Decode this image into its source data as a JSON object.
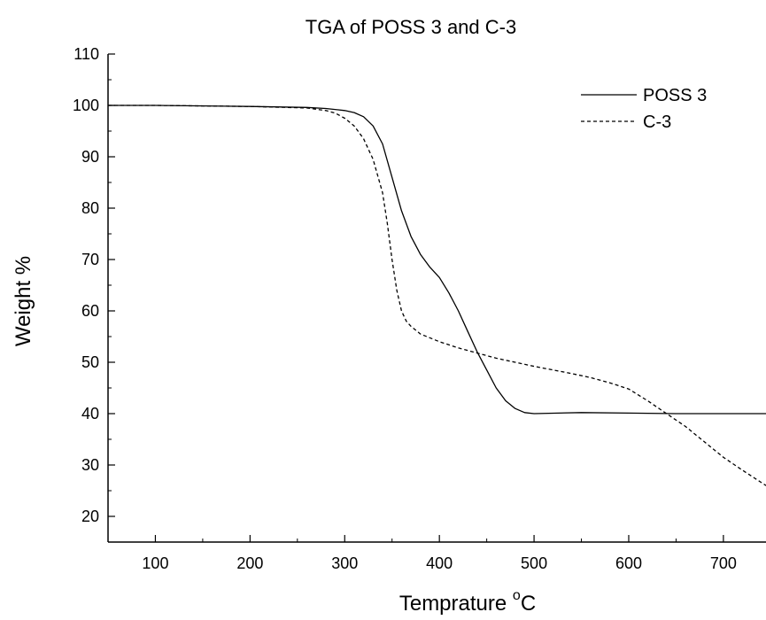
{
  "chart_data": {
    "type": "line",
    "title": "TGA of POSS 3 and C-3",
    "xlabel": "Temprature",
    "xlabel_unit": "C",
    "xlabel_degree": "o",
    "ylabel": "Weight %",
    "xlim": [
      50,
      745
    ],
    "ylim": [
      15,
      110
    ],
    "xticks": [
      100,
      200,
      300,
      400,
      500,
      600,
      700
    ],
    "yticks": [
      20,
      30,
      40,
      50,
      60,
      70,
      80,
      90,
      100,
      110
    ],
    "grid": false,
    "legend_position": "top-right",
    "series": [
      {
        "name": "POSS 3",
        "line_style": "solid",
        "x": [
          50,
          100,
          200,
          260,
          280,
          300,
          310,
          320,
          330,
          340,
          350,
          360,
          370,
          380,
          390,
          400,
          410,
          420,
          430,
          440,
          450,
          460,
          470,
          480,
          490,
          500,
          550,
          600,
          650,
          700,
          745
        ],
        "y": [
          100,
          100,
          99.8,
          99.6,
          99.4,
          99.0,
          98.6,
          97.8,
          96.0,
          92.5,
          86.0,
          79.5,
          74.5,
          71.0,
          68.5,
          66.5,
          63.5,
          60.0,
          56.0,
          52.0,
          48.5,
          45.0,
          42.5,
          41.0,
          40.2,
          40.0,
          40.2,
          40.1,
          40.0,
          40.0,
          40.0
        ]
      },
      {
        "name": "C-3",
        "line_style": "dashed",
        "x": [
          50,
          100,
          200,
          260,
          280,
          290,
          300,
          310,
          320,
          330,
          340,
          345,
          350,
          355,
          360,
          365,
          370,
          380,
          400,
          420,
          440,
          460,
          480,
          500,
          520,
          540,
          560,
          580,
          600,
          620,
          640,
          660,
          680,
          700,
          720,
          745
        ],
        "y": [
          100,
          100,
          99.8,
          99.5,
          99.0,
          98.5,
          97.5,
          96.0,
          93.5,
          89.5,
          83.0,
          77.0,
          70.0,
          64.0,
          60.0,
          58.0,
          57.0,
          55.5,
          54.0,
          52.8,
          51.8,
          50.8,
          50.0,
          49.2,
          48.5,
          47.8,
          47.0,
          46.0,
          44.8,
          42.5,
          40.0,
          37.5,
          34.5,
          31.5,
          29.0,
          26.0
        ]
      }
    ]
  }
}
